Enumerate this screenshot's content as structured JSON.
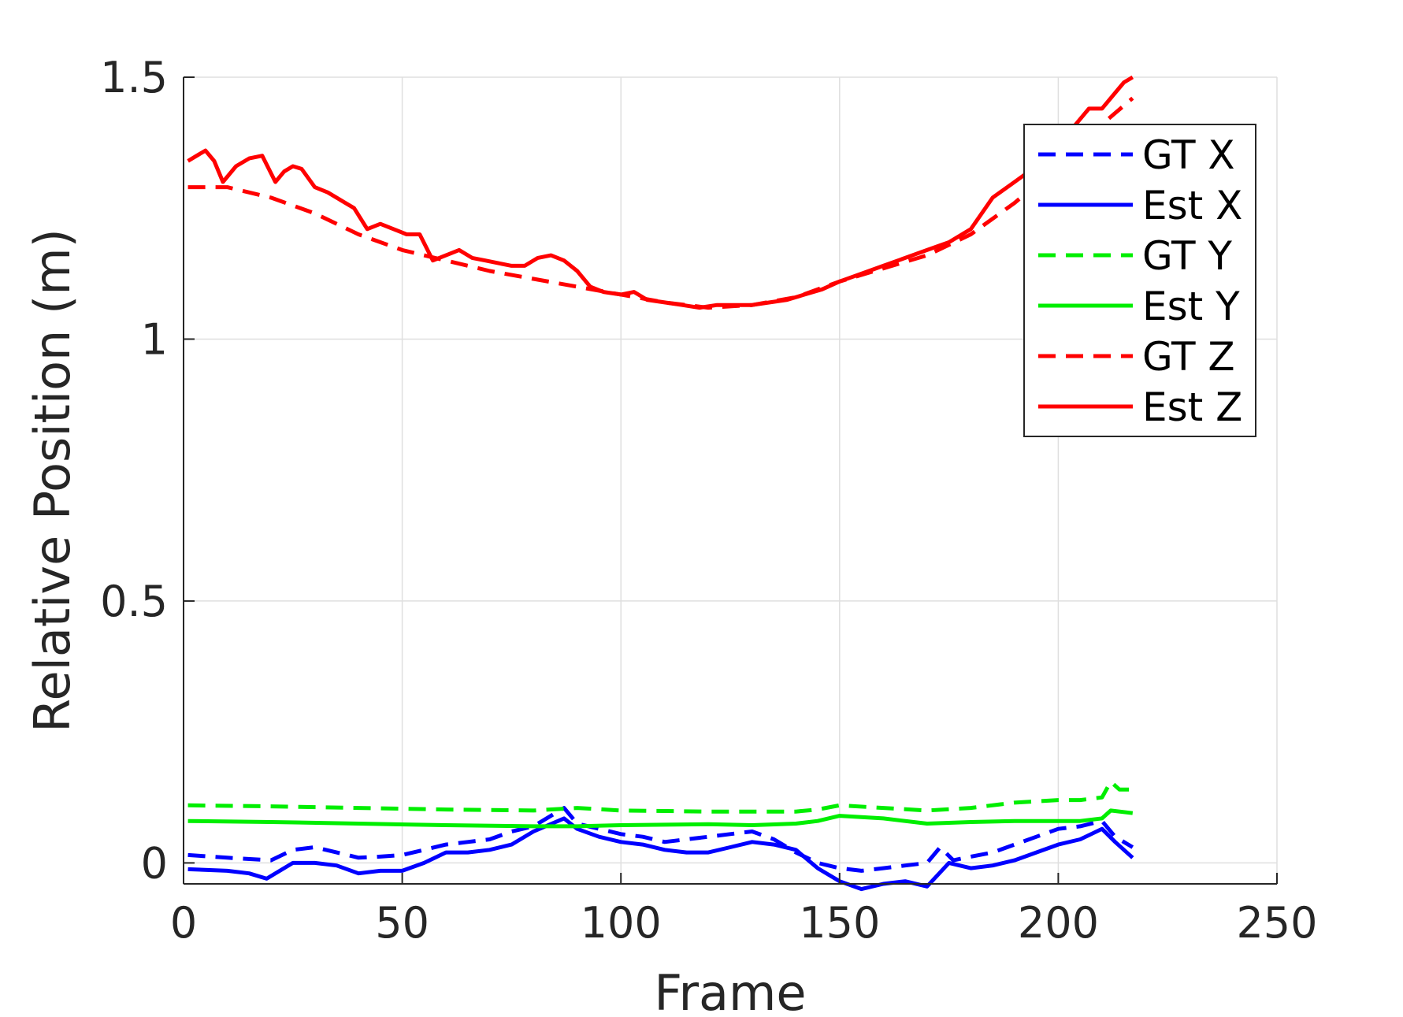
{
  "chart_data": {
    "type": "line",
    "xlabel": "Frame",
    "ylabel": "Relative Position (m)",
    "xlim": [
      0,
      250
    ],
    "ylim": [
      -0.04,
      1.5
    ],
    "xticks": [
      0,
      50,
      100,
      150,
      200,
      250
    ],
    "xtick_labels": [
      "0",
      "50",
      "100",
      "150",
      "200",
      "250"
    ],
    "yticks": [
      0,
      0.5,
      1,
      1.5
    ],
    "ytick_labels": [
      "0",
      "0.5",
      "1",
      "1.5"
    ],
    "grid": true,
    "legend_position": "top-right",
    "series": [
      {
        "name": "GT X",
        "color": "#0000ff",
        "style": "dashed",
        "x": [
          1,
          10,
          20,
          25,
          30,
          35,
          40,
          45,
          50,
          55,
          60,
          65,
          70,
          75,
          80,
          87,
          90,
          95,
          100,
          105,
          110,
          115,
          120,
          125,
          130,
          135,
          140,
          145,
          150,
          155,
          160,
          165,
          170,
          173,
          176,
          180,
          185,
          190,
          195,
          200,
          205,
          210,
          213,
          217
        ],
        "y": [
          0.015,
          0.01,
          0.005,
          0.025,
          0.03,
          0.02,
          0.01,
          0.012,
          0.015,
          0.025,
          0.035,
          0.04,
          0.045,
          0.06,
          0.07,
          0.105,
          0.075,
          0.065,
          0.055,
          0.05,
          0.04,
          0.045,
          0.05,
          0.055,
          0.06,
          0.045,
          0.02,
          0.0,
          -0.01,
          -0.015,
          -0.01,
          -0.005,
          0.0,
          0.03,
          0.005,
          0.012,
          0.02,
          0.035,
          0.05,
          0.065,
          0.07,
          0.08,
          0.05,
          0.03
        ]
      },
      {
        "name": "Est X",
        "color": "#0000ff",
        "style": "solid",
        "x": [
          1,
          10,
          15,
          19,
          25,
          30,
          35,
          40,
          45,
          50,
          55,
          60,
          65,
          70,
          75,
          80,
          87,
          90,
          95,
          100,
          105,
          110,
          115,
          120,
          125,
          130,
          135,
          140,
          145,
          150,
          155,
          160,
          165,
          170,
          175,
          180,
          185,
          190,
          195,
          200,
          205,
          210,
          213,
          217
        ],
        "y": [
          -0.012,
          -0.015,
          -0.02,
          -0.03,
          0.0,
          0.0,
          -0.005,
          -0.02,
          -0.015,
          -0.015,
          0.0,
          0.02,
          0.02,
          0.025,
          0.035,
          0.06,
          0.085,
          0.065,
          0.05,
          0.04,
          0.035,
          0.025,
          0.02,
          0.02,
          0.03,
          0.04,
          0.035,
          0.025,
          -0.01,
          -0.035,
          -0.05,
          -0.04,
          -0.035,
          -0.045,
          0.0,
          -0.01,
          -0.005,
          0.005,
          0.02,
          0.035,
          0.045,
          0.065,
          0.04,
          0.01
        ]
      },
      {
        "name": "GT Y",
        "color": "#00ee00",
        "style": "dashed",
        "x": [
          1,
          20,
          40,
          60,
          80,
          90,
          100,
          120,
          140,
          145,
          150,
          160,
          170,
          180,
          190,
          200,
          205,
          210,
          212,
          214,
          217
        ],
        "y": [
          0.11,
          0.108,
          0.105,
          0.102,
          0.1,
          0.105,
          0.1,
          0.098,
          0.098,
          0.102,
          0.11,
          0.105,
          0.1,
          0.105,
          0.115,
          0.12,
          0.12,
          0.125,
          0.155,
          0.14,
          0.14
        ]
      },
      {
        "name": "Est Y",
        "color": "#00ee00",
        "style": "solid",
        "x": [
          1,
          20,
          40,
          60,
          80,
          90,
          100,
          110,
          120,
          130,
          140,
          145,
          150,
          160,
          170,
          180,
          190,
          200,
          205,
          210,
          212,
          217
        ],
        "y": [
          0.08,
          0.078,
          0.075,
          0.072,
          0.07,
          0.07,
          0.072,
          0.073,
          0.074,
          0.072,
          0.075,
          0.08,
          0.09,
          0.085,
          0.075,
          0.078,
          0.08,
          0.08,
          0.08,
          0.085,
          0.1,
          0.095
        ]
      },
      {
        "name": "GT Z",
        "color": "#ff0000",
        "style": "dashed",
        "x": [
          1,
          10,
          20,
          30,
          40,
          50,
          60,
          70,
          80,
          90,
          100,
          110,
          120,
          130,
          140,
          150,
          160,
          170,
          180,
          190,
          200,
          205,
          210,
          217
        ],
        "y": [
          1.29,
          1.29,
          1.27,
          1.24,
          1.2,
          1.17,
          1.15,
          1.13,
          1.115,
          1.1,
          1.085,
          1.07,
          1.06,
          1.065,
          1.08,
          1.11,
          1.135,
          1.16,
          1.2,
          1.26,
          1.33,
          1.37,
          1.41,
          1.46
        ]
      },
      {
        "name": "Est Z",
        "color": "#ff0000",
        "style": "solid",
        "x": [
          1,
          3,
          5,
          7,
          9,
          12,
          15,
          18,
          21,
          23,
          25,
          27,
          30,
          33,
          36,
          39,
          42,
          45,
          48,
          51,
          54,
          57,
          60,
          63,
          66,
          69,
          72,
          75,
          78,
          81,
          84,
          87,
          90,
          93,
          96,
          100,
          103,
          106,
          110,
          114,
          118,
          122,
          126,
          130,
          134,
          138,
          142,
          146,
          150,
          155,
          160,
          165,
          170,
          175,
          180,
          185,
          190,
          195,
          200,
          204,
          207,
          210,
          213,
          215,
          217
        ],
        "y": [
          1.34,
          1.35,
          1.36,
          1.34,
          1.3,
          1.33,
          1.345,
          1.35,
          1.3,
          1.32,
          1.33,
          1.325,
          1.29,
          1.28,
          1.265,
          1.25,
          1.21,
          1.22,
          1.21,
          1.2,
          1.2,
          1.15,
          1.16,
          1.17,
          1.155,
          1.15,
          1.145,
          1.14,
          1.14,
          1.155,
          1.16,
          1.15,
          1.13,
          1.1,
          1.09,
          1.085,
          1.09,
          1.075,
          1.07,
          1.065,
          1.06,
          1.065,
          1.065,
          1.065,
          1.07,
          1.075,
          1.085,
          1.095,
          1.11,
          1.125,
          1.14,
          1.155,
          1.17,
          1.185,
          1.21,
          1.27,
          1.3,
          1.33,
          1.37,
          1.41,
          1.44,
          1.44,
          1.47,
          1.49,
          1.5
        ]
      }
    ]
  }
}
